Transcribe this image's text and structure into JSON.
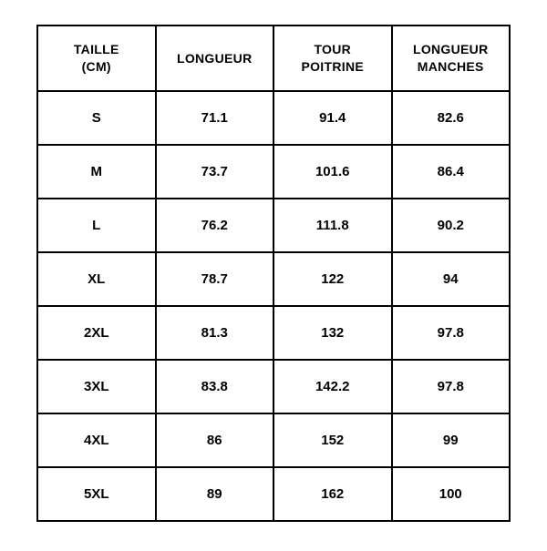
{
  "table": {
    "type": "table",
    "background_color": "#ffffff",
    "border_color": "#000000",
    "border_width": 2,
    "text_color": "#000000",
    "header_fontsize": 14,
    "cell_fontsize": 15,
    "font_weight": "bold",
    "column_alignment": "center",
    "columns": [
      "TAILLE (CM)",
      "LONGUEUR",
      "TOUR POITRINE",
      "LONGUEUR MANCHES"
    ],
    "rows": [
      [
        "S",
        "71.1",
        "91.4",
        "82.6"
      ],
      [
        "M",
        "73.7",
        "101.6",
        "86.4"
      ],
      [
        "L",
        "76.2",
        "111.8",
        "90.2"
      ],
      [
        "XL",
        "78.7",
        "122",
        "94"
      ],
      [
        "2XL",
        "81.3",
        "132",
        "97.8"
      ],
      [
        "3XL",
        "83.8",
        "142.2",
        "97.8"
      ],
      [
        "4XL",
        "86",
        "152",
        "99"
      ],
      [
        "5XL",
        "89",
        "162",
        "100"
      ]
    ]
  }
}
